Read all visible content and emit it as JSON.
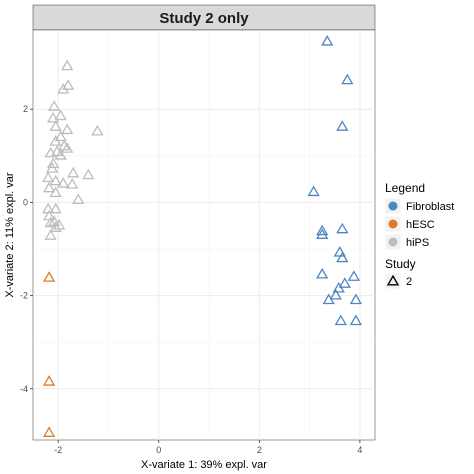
{
  "chart_data": {
    "type": "scatter",
    "title": "Study 2 only",
    "xlabel": "X-variate 1: 39% expl. var",
    "ylabel": "X-variate 2: 11% expl. var",
    "xlim": [
      -2.5,
      4.3
    ],
    "ylim": [
      -5.1,
      3.7
    ],
    "x_ticks": [
      -2,
      0,
      2,
      4
    ],
    "y_ticks": [
      -4,
      -2,
      0,
      2
    ],
    "grid": true,
    "marker": "triangle-open",
    "legend_placement": "right",
    "legend": {
      "title": "Legend",
      "entries": [
        {
          "label": "Fibroblast",
          "color": "#4f86c0"
        },
        {
          "label": "hESC",
          "color": "#e07b25"
        },
        {
          "label": "hiPS",
          "color": "#bdbdbd"
        }
      ]
    },
    "study_legend": {
      "title": "Study",
      "entries": [
        {
          "label": "2",
          "marker": "triangle-open"
        }
      ]
    },
    "series": [
      {
        "name": "Fibroblast",
        "color": "#4f86c0",
        "points": [
          [
            3.35,
            3.45
          ],
          [
            3.75,
            2.62
          ],
          [
            3.65,
            1.62
          ],
          [
            3.08,
            0.22
          ],
          [
            3.25,
            -0.62
          ],
          [
            3.25,
            -0.7
          ],
          [
            3.65,
            -0.58
          ],
          [
            3.6,
            -1.08
          ],
          [
            3.65,
            -1.2
          ],
          [
            3.25,
            -1.55
          ],
          [
            3.88,
            -1.6
          ],
          [
            3.7,
            -1.75
          ],
          [
            3.58,
            -1.85
          ],
          [
            3.52,
            -2.0
          ],
          [
            3.38,
            -2.1
          ],
          [
            3.92,
            -2.1
          ],
          [
            3.62,
            -2.55
          ],
          [
            3.92,
            -2.55
          ]
        ]
      },
      {
        "name": "hESC",
        "color": "#e07b25",
        "points": [
          [
            -2.18,
            -1.62
          ],
          [
            -2.18,
            -3.85
          ],
          [
            -2.18,
            -4.95
          ]
        ]
      },
      {
        "name": "hiPS",
        "color": "#bdbdbd",
        "points": [
          [
            -1.82,
            2.92
          ],
          [
            -1.8,
            2.5
          ],
          [
            -1.9,
            2.42
          ],
          [
            -2.08,
            2.05
          ],
          [
            -1.95,
            1.85
          ],
          [
            -2.1,
            1.8
          ],
          [
            -2.05,
            1.62
          ],
          [
            -1.82,
            1.55
          ],
          [
            -1.22,
            1.52
          ],
          [
            -1.95,
            1.4
          ],
          [
            -2.05,
            1.3
          ],
          [
            -1.88,
            1.2
          ],
          [
            -1.82,
            1.15
          ],
          [
            -2.02,
            1.08
          ],
          [
            -2.15,
            1.05
          ],
          [
            -1.95,
            1.0
          ],
          [
            -2.1,
            0.82
          ],
          [
            -2.12,
            0.72
          ],
          [
            -1.7,
            0.62
          ],
          [
            -1.4,
            0.58
          ],
          [
            -2.2,
            0.52
          ],
          [
            -2.05,
            0.45
          ],
          [
            -1.9,
            0.4
          ],
          [
            -1.72,
            0.38
          ],
          [
            -2.18,
            0.3
          ],
          [
            -2.05,
            0.2
          ],
          [
            -1.6,
            0.05
          ],
          [
            -2.2,
            -0.15
          ],
          [
            -2.05,
            -0.15
          ],
          [
            -2.18,
            -0.3
          ],
          [
            -2.08,
            -0.42
          ],
          [
            -2.15,
            -0.45
          ],
          [
            -1.98,
            -0.5
          ],
          [
            -2.05,
            -0.55
          ],
          [
            -2.15,
            -0.72
          ]
        ]
      }
    ]
  }
}
